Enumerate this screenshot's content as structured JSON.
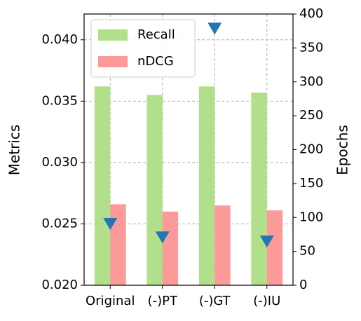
{
  "chart_data": {
    "type": "bar",
    "categories": [
      "Original",
      "(-)PT",
      "(-)GT",
      "(-)IU"
    ],
    "ylabel": "Metrics",
    "y2label": "Epochs",
    "ylim": [
      0.02,
      0.0421
    ],
    "yticks": [
      {
        "value": 0.02,
        "label": "0.020"
      },
      0.025,
      {
        "value": 0.03,
        "label": "0.030"
      },
      0.035,
      {
        "value": 0.04,
        "label": "0.040"
      }
    ],
    "y2lim": [
      0,
      400
    ],
    "y2ticks": [
      0,
      50,
      100,
      150,
      200,
      250,
      300,
      350,
      400
    ],
    "grid": true,
    "legend": "upper left",
    "series": [
      {
        "name": "Recall",
        "color": "#b2df8a",
        "values": [
          0.0362,
          0.0355,
          0.0362,
          0.0357
        ]
      },
      {
        "name": "nDCG",
        "color": "#fb9a99",
        "values": [
          0.0266,
          0.026,
          0.0265,
          0.0261
        ]
      },
      {
        "type": "scatter",
        "marker": "triangle-down",
        "axis": "y2",
        "color": "#1f77b4",
        "values": [
          91,
          71,
          379,
          65
        ]
      }
    ]
  }
}
